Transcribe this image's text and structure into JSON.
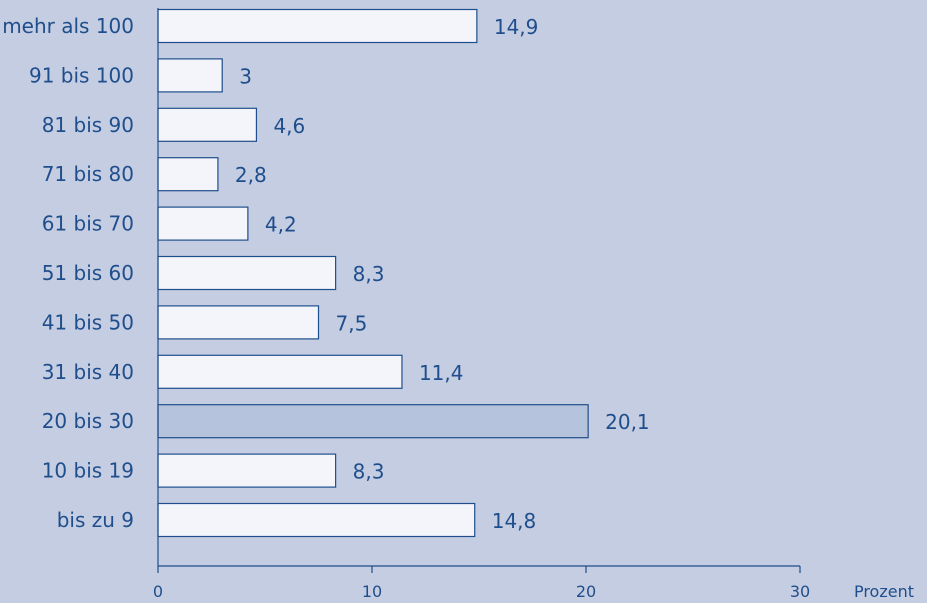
{
  "chart_data": {
    "type": "bar",
    "orientation": "horizontal",
    "categories": [
      "mehr als 100",
      "91 bis 100",
      "81 bis 90",
      "71 bis 80",
      "61 bis 70",
      "51 bis 60",
      "41 bis 50",
      "31 bis 40",
      "20 bis 30",
      "10 bis 19",
      "bis zu 9"
    ],
    "values": [
      14.9,
      3,
      4.6,
      2.8,
      4.2,
      8.3,
      7.5,
      11.4,
      20.1,
      8.3,
      14.8
    ],
    "value_labels": [
      "14,9",
      "3",
      "4,6",
      "2,8",
      "4,2",
      "8,3",
      "7,5",
      "11,4",
      "20,1",
      "8,3",
      "14,8"
    ],
    "xticks": [
      0,
      10,
      20,
      30
    ],
    "xlim": [
      0,
      30
    ],
    "xlabel": "Prozent",
    "title": "",
    "ylabel": "",
    "grid": false,
    "colors": {
      "background": "#c5cde2",
      "border": "#1f4e8c",
      "text": "#1f4e8c",
      "bar_fill_light": "#f4f5fa",
      "bar_fill_dark": "#b6c3dc"
    }
  }
}
